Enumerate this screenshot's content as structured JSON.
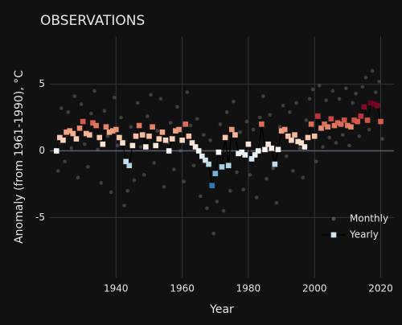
{
  "chart_data": {
    "type": "scatter",
    "title": "OBSERVATIONS",
    "x_label": "Year",
    "y_label": "Anomaly (from 1961-1990), °C",
    "xlim": [
      1920,
      2024
    ],
    "ylim": [
      -9.5,
      8.6
    ],
    "xticks": [
      1940,
      1960,
      1980,
      2000,
      2020
    ],
    "yticks": [
      -5,
      0,
      5
    ],
    "grid": true,
    "legend": "bottom-right",
    "colorscale": [
      "#053061",
      "#2166ac",
      "#4393c3",
      "#92c5de",
      "#d1e5f0",
      "#f7f7f7",
      "#fddbc7",
      "#f4a582",
      "#d6604d",
      "#b2182b",
      "#67001f"
    ],
    "series": [
      {
        "name": "Monthly",
        "color": "#777777",
        "x": [
          1922.5,
          1923.5,
          1924.5,
          1925.5,
          1926.5,
          1927.5,
          1928.5,
          1929.5,
          1930.5,
          1931.5,
          1932.5,
          1933.5,
          1934.5,
          1935.5,
          1936.5,
          1937.5,
          1938.5,
          1939.5,
          1940.5,
          1941.5,
          1942.5,
          1943.5,
          1944.5,
          1945.5,
          1946.5,
          1947.5,
          1948.5,
          1949.5,
          1950.5,
          1951.5,
          1952.5,
          1953.5,
          1954.5,
          1955.5,
          1956.5,
          1957.5,
          1958.5,
          1959.5,
          1960.5,
          1961.5,
          1962.5,
          1963.5,
          1964.5,
          1965.5,
          1966.5,
          1967.5,
          1968.5,
          1969.5,
          1970.5,
          1971.5,
          1972.5,
          1973.5,
          1974.5,
          1975.5,
          1976.5,
          1977.5,
          1978.5,
          1979.5,
          1980.5,
          1981.5,
          1982.5,
          1983.5,
          1984.5,
          1985.5,
          1986.5,
          1987.5,
          1988.5,
          1989.5,
          1990.5,
          1991.5,
          1992.5,
          1993.5,
          1994.5,
          1995.5,
          1996.5,
          1997.5,
          1998.5,
          1999.5,
          2000.5,
          2001.5,
          2002.5,
          2003.5,
          2004.5,
          2005.5,
          2006.5,
          2007.5,
          2008.5,
          2009.5,
          2010.5,
          2011.5,
          2012.5,
          2013.5,
          2014.5,
          2015.5,
          2016.5,
          2017.5,
          2018.5,
          2019.5,
          2020.5
        ],
        "values": [
          -1.5,
          3.2,
          -0.8,
          2.9,
          0.2,
          4.1,
          -2.0,
          3.5,
          0.5,
          -1.2,
          2.8,
          4.5,
          0.1,
          -2.4,
          3.0,
          1.1,
          -3.1,
          4.0,
          0.4,
          2.5,
          -4.1,
          -3.0,
          1.8,
          -2.2,
          3.6,
          0.3,
          -1.8,
          2.6,
          4.2,
          -0.9,
          1.5,
          3.9,
          -2.7,
          0.6,
          2.1,
          -1.4,
          3.3,
          0.0,
          -2.3,
          4.4,
          1.9,
          -1.1,
          2.4,
          -3.4,
          1.2,
          -4.3,
          0.8,
          -6.2,
          -3.8,
          2.0,
          -4.5,
          2.9,
          -3.0,
          3.7,
          -1.6,
          1.4,
          -2.9,
          2.2,
          -1.8,
          1.6,
          -3.5,
          2.5,
          4.1,
          -2.1,
          2.7,
          -1.3,
          -3.9,
          1.8,
          3.4,
          -0.4,
          2.9,
          -1.5,
          3.6,
          0.2,
          -2.0,
          2.3,
          3.9,
          4.6,
          -0.8,
          4.9,
          0.3,
          3.8,
          1.0,
          4.5,
          0.6,
          3.9,
          1.2,
          4.7,
          0.4,
          3.6,
          4.3,
          1.1,
          4.8,
          5.5,
          1.6,
          6.0,
          4.4,
          5.2,
          0.9
        ]
      },
      {
        "name": "Yearly",
        "x": [
          1922,
          1923,
          1924,
          1925,
          1926,
          1927,
          1928,
          1929,
          1930,
          1931,
          1932,
          1933,
          1934,
          1935,
          1936,
          1937,
          1938,
          1939,
          1940,
          1941,
          1942,
          1943,
          1944,
          1945,
          1946,
          1947,
          1948,
          1949,
          1950,
          1951,
          1952,
          1953,
          1954,
          1955,
          1956,
          1957,
          1958,
          1959,
          1960,
          1961,
          1962,
          1963,
          1964,
          1965,
          1966,
          1967,
          1968,
          1969,
          1970,
          1971,
          1972,
          1973,
          1974,
          1975,
          1976,
          1977,
          1978,
          1979,
          1980,
          1981,
          1982,
          1983,
          1984,
          1985,
          1986,
          1987,
          1988,
          1989,
          1990,
          1991,
          1992,
          1993,
          1994,
          1995,
          1996,
          1997,
          1998,
          1999,
          2000,
          2001,
          2002,
          2003,
          2004,
          2005,
          2006,
          2007,
          2008,
          2009,
          2010,
          2011,
          2012,
          2013,
          2014,
          2015,
          2016,
          2017,
          2018,
          2019,
          2020
        ],
        "values": [
          0,
          1.0,
          0.8,
          1.4,
          1.5,
          1.3,
          0.9,
          1.7,
          2.2,
          1.3,
          1.2,
          2.1,
          1.9,
          1.0,
          0.5,
          1.8,
          1.4,
          1.5,
          1.6,
          1.0,
          0.6,
          -0.8,
          -1.1,
          0.4,
          1.1,
          1.9,
          1.2,
          0.3,
          1.1,
          1.8,
          0.4,
          0.9,
          1.4,
          0.8,
          0,
          0.9,
          1.5,
          1.6,
          0.8,
          2.0,
          1.1,
          0.6,
          0.3,
          0,
          -0.4,
          -0.7,
          -1.0,
          -2.6,
          -1.7,
          -0.1,
          -1.2,
          1.0,
          -1.1,
          1.6,
          1.2,
          -0.2,
          -0.1,
          -0.3,
          0.5,
          -0.6,
          -0.3,
          0,
          2.0,
          0.1,
          0.5,
          0.2,
          -1.0,
          0.1,
          1.5,
          1.6,
          1.1,
          0.8,
          1.2,
          0.7,
          0.6,
          0.3,
          1.0,
          2.0,
          1.1,
          2.6,
          1.7,
          2.0,
          1.8,
          2.4,
          1.9,
          2.1,
          2.0,
          2.3,
          1.9,
          1.8,
          2.3,
          2.2,
          2.6,
          3.3,
          2.3,
          3.6,
          3.5,
          3.4,
          2.2
        ]
      }
    ]
  }
}
